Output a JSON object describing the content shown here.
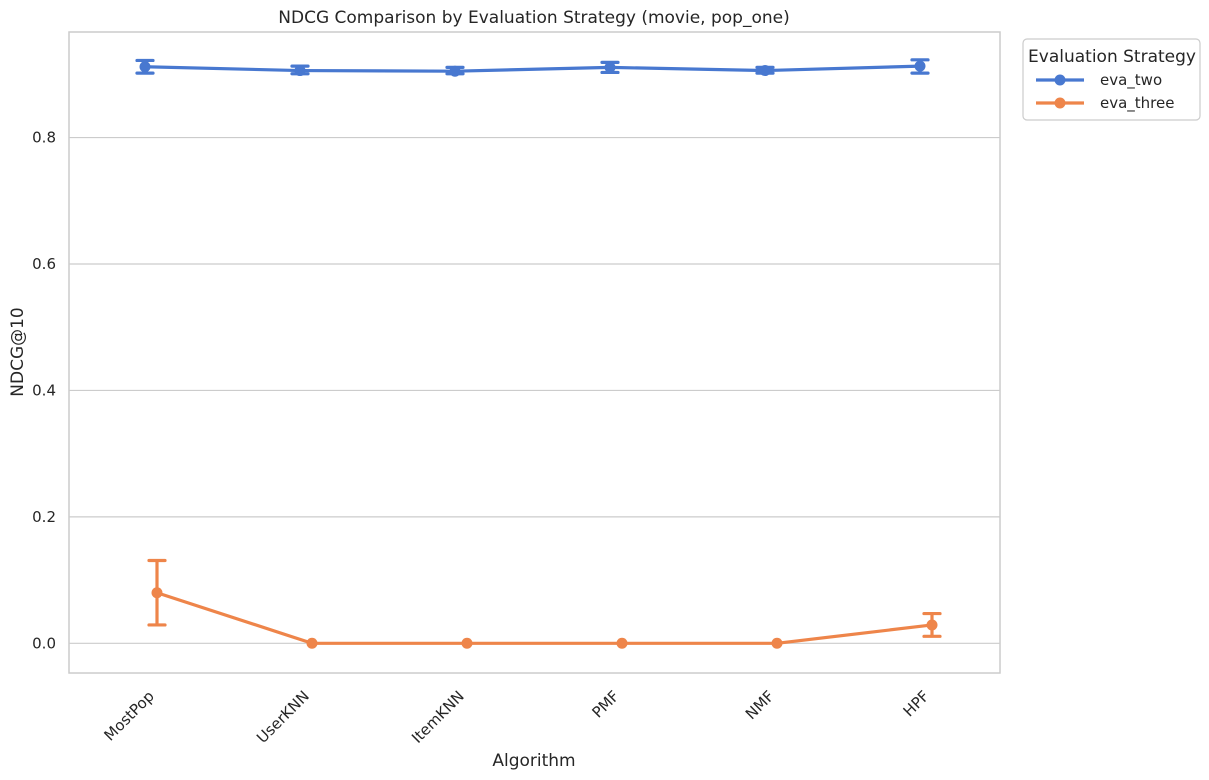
{
  "chart_data": {
    "type": "line",
    "title": "NDCG Comparison by Evaluation Strategy (movie, pop_one)",
    "xlabel": "Algorithm",
    "ylabel": "NDCG@10",
    "categories": [
      "MostPop",
      "UserKNN",
      "ItemKNN",
      "PMF",
      "NMF",
      "HPF"
    ],
    "ylim": [
      -0.047,
      0.967
    ],
    "yticks": [
      0.0,
      0.2,
      0.4,
      0.6,
      0.8
    ],
    "ytick_labels": [
      "0.0",
      "0.2",
      "0.4",
      "0.6",
      "0.8"
    ],
    "grid": "horizontal",
    "legend": {
      "title": "Evaluation Strategy",
      "placement": "outside-top-right"
    },
    "series": [
      {
        "name": "eva_two",
        "color": "#4878d0",
        "values": [
          0.912,
          0.906,
          0.905,
          0.911,
          0.906,
          0.913
        ],
        "err_low": [
          0.902,
          0.901,
          0.901,
          0.903,
          0.902,
          0.902
        ],
        "err_high": [
          0.922,
          0.913,
          0.911,
          0.919,
          0.911,
          0.923
        ]
      },
      {
        "name": "eva_three",
        "color": "#ee854a",
        "values": [
          0.08,
          0.0,
          0.0,
          0.0,
          0.0,
          0.029
        ],
        "err_low": [
          0.029,
          0.0,
          0.0,
          0.0,
          0.0,
          0.011
        ],
        "err_high": [
          0.131,
          0.0,
          0.0,
          0.0,
          0.0,
          0.047
        ]
      }
    ]
  }
}
